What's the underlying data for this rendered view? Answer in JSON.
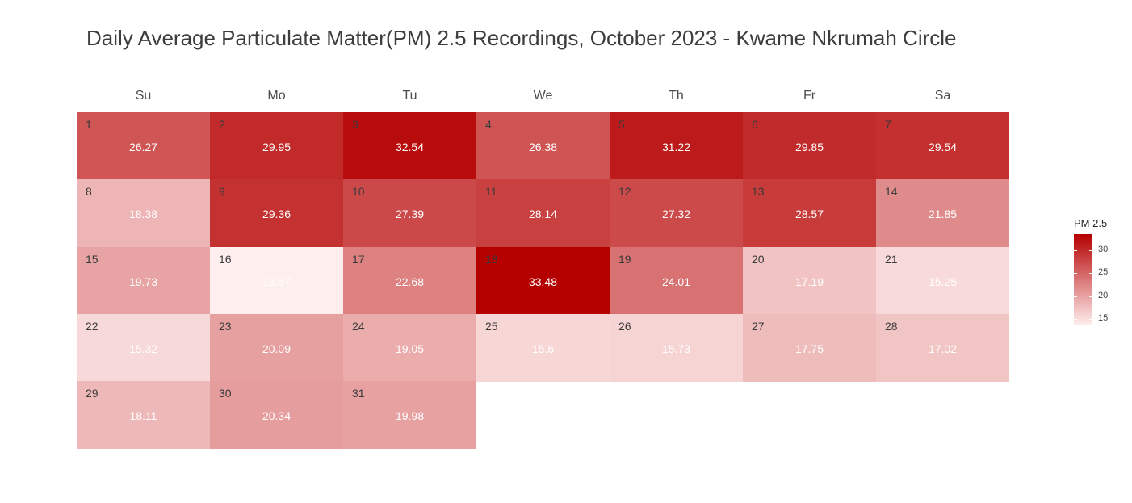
{
  "chart_data": {
    "type": "heatmap",
    "title": "Daily Average Particulate Matter(PM) 2.5 Recordings, October 2023 - Kwame Nkrumah Circle",
    "weekdays": [
      "Su",
      "Mo",
      "Tu",
      "We",
      "Th",
      "Fr",
      "Sa"
    ],
    "first_weekday_index": 0,
    "days": [
      {
        "day": "1",
        "value": 26.27
      },
      {
        "day": "2",
        "value": 29.95
      },
      {
        "day": "3",
        "value": 32.54
      },
      {
        "day": "4",
        "value": 26.38
      },
      {
        "day": "5",
        "value": 31.22
      },
      {
        "day": "6",
        "value": 29.85
      },
      {
        "day": "7",
        "value": 29.54
      },
      {
        "day": "8",
        "value": 18.38
      },
      {
        "day": "9",
        "value": 29.36
      },
      {
        "day": "10",
        "value": 27.39
      },
      {
        "day": "11",
        "value": 28.14
      },
      {
        "day": "12",
        "value": 27.32
      },
      {
        "day": "13",
        "value": 28.57
      },
      {
        "day": "14",
        "value": 21.85
      },
      {
        "day": "15",
        "value": 19.73
      },
      {
        "day": "16",
        "value": 13.57
      },
      {
        "day": "17",
        "value": 22.68
      },
      {
        "day": "18",
        "value": 33.48
      },
      {
        "day": "19",
        "value": 24.01
      },
      {
        "day": "20",
        "value": 17.19
      },
      {
        "day": "21",
        "value": 15.25
      },
      {
        "day": "22",
        "value": 15.32
      },
      {
        "day": "23",
        "value": 20.09
      },
      {
        "day": "24",
        "value": 19.05
      },
      {
        "day": "25",
        "value": 15.6
      },
      {
        "day": "26",
        "value": 15.73
      },
      {
        "day": "27",
        "value": 17.75
      },
      {
        "day": "28",
        "value": 17.02
      },
      {
        "day": "29",
        "value": 18.11
      },
      {
        "day": "30",
        "value": 20.34
      },
      {
        "day": "31",
        "value": 19.98
      }
    ],
    "legend": {
      "title": "PM 2.5",
      "ticks": [
        15,
        20,
        25,
        30
      ],
      "range": [
        13.57,
        33.48
      ],
      "low_color": "#ffeeee",
      "high_color": "#b50000"
    }
  }
}
